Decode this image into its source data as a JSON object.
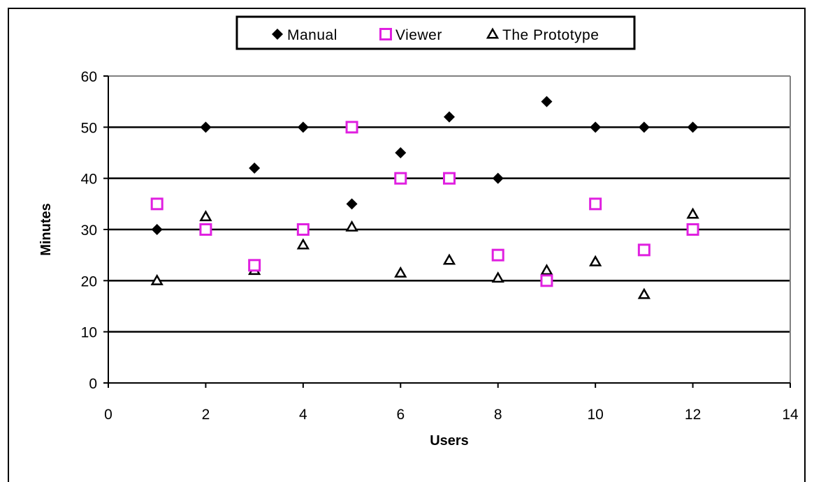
{
  "chart_data": {
    "type": "scatter",
    "xlabel": "Users",
    "ylabel": "Minutes",
    "xlim": [
      0,
      14
    ],
    "ylim": [
      0,
      60
    ],
    "xticks": [
      0,
      2,
      4,
      6,
      8,
      10,
      12,
      14
    ],
    "yticks": [
      0,
      10,
      20,
      30,
      40,
      50,
      60
    ],
    "grid": "horizontal",
    "legend_position": "top",
    "series": [
      {
        "name": "Manual",
        "marker": "diamond",
        "color": "#000000",
        "x": [
          1,
          2,
          3,
          4,
          5,
          6,
          7,
          8,
          9,
          10,
          11,
          12
        ],
        "y": [
          30,
          50,
          42,
          50,
          35,
          45,
          52,
          40,
          55,
          50,
          50,
          50
        ]
      },
      {
        "name": "Viewer",
        "marker": "square-open",
        "color": "#e020e0",
        "x": [
          1,
          2,
          3,
          4,
          5,
          6,
          7,
          8,
          9,
          10,
          11,
          12
        ],
        "y": [
          35,
          30,
          23,
          30,
          50,
          40,
          40,
          25,
          20,
          35,
          26,
          30
        ]
      },
      {
        "name": "The Prototype",
        "marker": "triangle-open",
        "color": "#000000",
        "x": [
          1,
          2,
          3,
          4,
          5,
          6,
          7,
          8,
          9,
          10,
          11,
          12
        ],
        "y": [
          20,
          32.5,
          22,
          27,
          30.5,
          21.5,
          24,
          20.5,
          22,
          23.7,
          17.3,
          33
        ]
      }
    ]
  }
}
